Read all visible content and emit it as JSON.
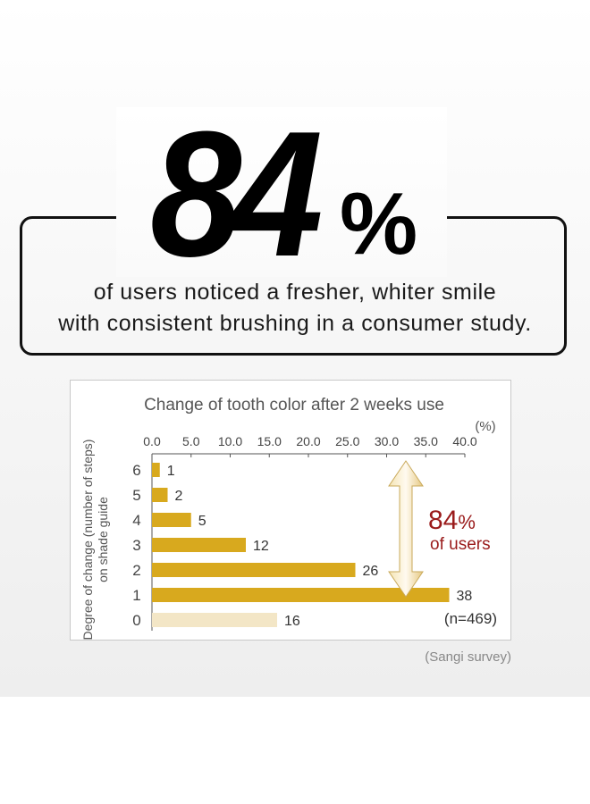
{
  "headline": {
    "number": "84",
    "percent": "%",
    "line1": "of users noticed a fresher, whiter smile",
    "line2": "with consistent brushing in a consumer study."
  },
  "chart_data": {
    "type": "bar",
    "orientation": "horizontal",
    "title": "Change of tooth color after 2 weeks use",
    "xlabel": "(%)",
    "ylabel": "Degree of change (number of steps) on shade guide",
    "ylabel_lines": [
      "Degree of change (number of steps)",
      "on shade guide"
    ],
    "xlim": [
      0,
      40
    ],
    "xticks": [
      "0.0",
      "5.0",
      "10.0",
      "15.0",
      "20.0",
      "25.0",
      "30.0",
      "35.0",
      "40.0"
    ],
    "categories": [
      "6",
      "5",
      "4",
      "3",
      "2",
      "1",
      "0"
    ],
    "values": [
      1,
      2,
      5,
      12,
      26,
      38,
      16
    ],
    "value_labels": [
      "1",
      "2",
      "5",
      "12",
      "26",
      "38",
      "16"
    ],
    "colors": {
      "bar": "#d8a91e",
      "bar_light": "#f3e6c6",
      "accent": "#9a1b1b"
    },
    "annotation": {
      "value": "84",
      "unit": "%",
      "text": "of users",
      "n_label": "(n=469)"
    },
    "grid": false,
    "legend": "none"
  },
  "source": "(Sangi survey)"
}
